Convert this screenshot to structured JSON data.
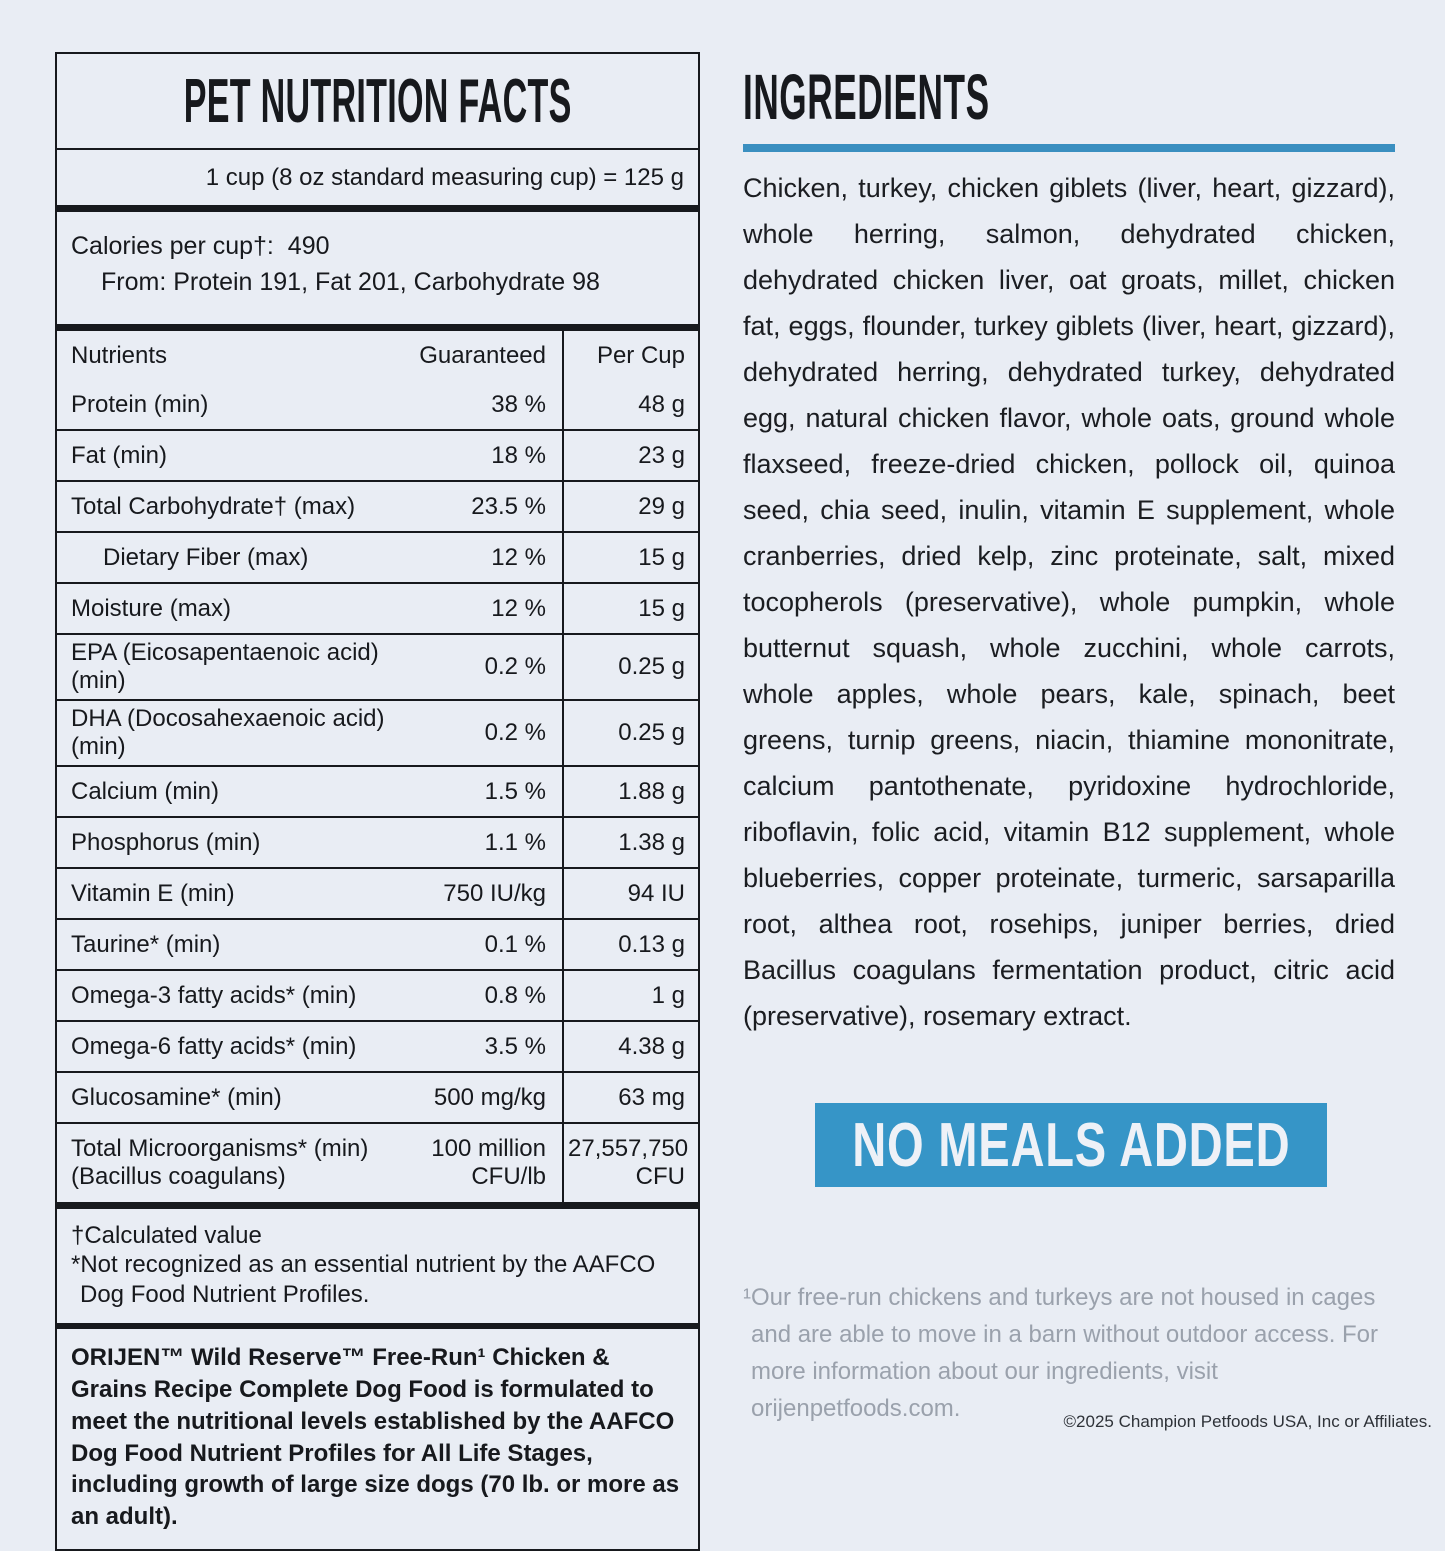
{
  "page": {
    "background": "#e9edf4",
    "rule_blue": "#3a8fc0",
    "banner_blue": "#3695c7"
  },
  "nutrition_panel": {
    "title": "PET NUTRITION FACTS",
    "serving_line": "1 cup (8 oz standard measuring cup) = 125 g",
    "calories_label": "Calories per cup†:",
    "calories_value": "490",
    "calories_from": "From: Protein 191, Fat 201, Carbohydrate 98",
    "table": {
      "headers": [
        "Nutrients",
        "Guaranteed",
        "Per Cup"
      ],
      "rows": [
        {
          "label": "Protein (min)",
          "guaranteed": "38 %",
          "per_cup": "48 g"
        },
        {
          "label": "Fat (min)",
          "guaranteed": "18 %",
          "per_cup": "23 g"
        },
        {
          "label": "Total Carbohydrate† (max)",
          "guaranteed": "23.5 %",
          "per_cup": "29 g"
        },
        {
          "label": "Dietary Fiber (max)",
          "guaranteed": "12 %",
          "per_cup": "15 g",
          "indent": true
        },
        {
          "label": "Moisture (max)",
          "guaranteed": "12 %",
          "per_cup": "15 g"
        },
        {
          "label": "EPA (Eicosapentaenoic acid) (min)",
          "guaranteed": "0.2 %",
          "per_cup": "0.25 g"
        },
        {
          "label": "DHA (Docosahexaenoic acid) (min)",
          "guaranteed": "0.2 %",
          "per_cup": "0.25 g"
        },
        {
          "label": "Calcium (min)",
          "guaranteed": "1.5 %",
          "per_cup": "1.88 g"
        },
        {
          "label": "Phosphorus (min)",
          "guaranteed": "1.1 %",
          "per_cup": "1.38 g"
        },
        {
          "label": "Vitamin E (min)",
          "guaranteed": "750 IU/kg",
          "per_cup": "94 IU"
        },
        {
          "label": "Taurine* (min)",
          "guaranteed": "0.1 %",
          "per_cup": "0.13 g"
        },
        {
          "label": "Omega-3 fatty acids* (min)",
          "guaranteed": "0.8 %",
          "per_cup": "1 g"
        },
        {
          "label": "Omega-6 fatty acids* (min)",
          "guaranteed": "3.5 %",
          "per_cup": "4.38 g"
        },
        {
          "label": "Glucosamine* (min)",
          "guaranteed": "500 mg/kg",
          "per_cup": "63 mg"
        },
        {
          "label": "Total Microorganisms* (min)",
          "label_sub": "(Bacillus coagulans)",
          "guaranteed": "100 million CFU/lb",
          "per_cup": "27,557,750 CFU",
          "tall": true
        }
      ]
    },
    "footnote_1": "†Calculated value",
    "footnote_2": "*Not recognized as an essential nutrient by the AAFCO Dog Food Nutrient Profiles.",
    "aafco_statement": "ORIJEN™ Wild Reserve™ Free-Run¹ Chicken & Grains Recipe Complete Dog Food is formulated to meet the nutritional levels established by the AAFCO Dog Food Nutrient Profiles for All Life Stages, including growth of large size dogs (70 lb. or more as an adult)."
  },
  "ingredients_section": {
    "title": "INGREDIENTS",
    "text": "Chicken, turkey, chicken giblets (liver, heart, gizzard), whole herring, salmon, dehydrated chicken, dehydrated chicken liver, oat groats, millet, chicken fat, eggs, flounder, turkey giblets (liver, heart, gizzard), dehydrated herring, dehydrated turkey, dehydrated egg, natural chicken flavor, whole oats, ground whole flaxseed, freeze-dried chicken, pollock oil, quinoa seed, chia seed, inulin, vitamin E supplement, whole cranberries, dried kelp, zinc proteinate, salt, mixed tocopherols (preservative), whole pumpkin, whole butternut squash, whole zucchini, whole carrots, whole apples, whole pears, kale, spinach, beet greens, turnip greens, niacin, thiamine mononitrate, calcium pantothenate, pyridoxine hydrochloride, riboflavin, folic acid, vitamin B12 supplement, whole blueberries, copper proteinate, turmeric, sarsaparilla root, althea root, rosehips, juniper berries, dried Bacillus coagulans fermentation product, citric acid (preservative), rosemary extract.",
    "badge_label": "NO MEALS ADDED",
    "footnote": "¹Our free-run chickens and turkeys are not housed in cages and are able to move in a barn without outdoor access. For more information about our ingredients, visit orijenpetfoods.com."
  },
  "footer": {
    "copyright": "©2025 Champion Petfoods USA, Inc or Affiliates."
  }
}
